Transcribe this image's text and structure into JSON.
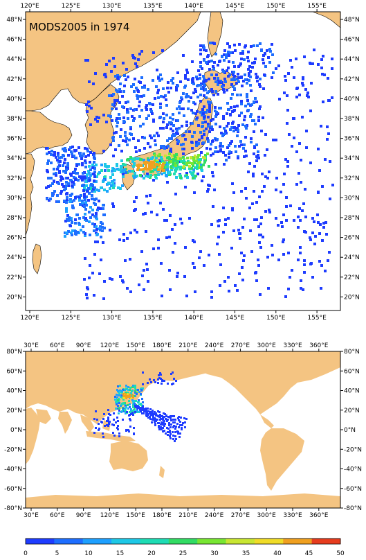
{
  "title": "MODS2005 in 1974",
  "top_map": {
    "lon_labels": [
      "120°E",
      "125°E",
      "130°E",
      "135°E",
      "140°E",
      "145°E",
      "150°E",
      "155°E"
    ],
    "lat_labels": [
      "48°N",
      "46°N",
      "44°N",
      "42°N",
      "40°N",
      "38°N",
      "36°N",
      "34°N",
      "32°N",
      "30°N",
      "28°N",
      "26°N",
      "24°N",
      "22°N",
      "20°N"
    ],
    "lon_range": [
      119,
      157.5
    ],
    "lat_range": [
      18.6,
      49.6
    ]
  },
  "bottom_map": {
    "lon_labels": [
      "30°E",
      "60°E",
      "90°E",
      "120°E",
      "150°E",
      "180°E",
      "210°E",
      "240°E",
      "270°E",
      "300°E",
      "330°E",
      "360°E"
    ],
    "lat_labels": [
      "80°N",
      "60°N",
      "40°N",
      "20°N",
      "0°N",
      "-20°N",
      "-40°N",
      "-60°N",
      "-80°N"
    ],
    "lon_range": [
      20,
      381
    ],
    "lat_range": [
      -80,
      80
    ]
  },
  "colorbar": {
    "labels": [
      "0",
      "5",
      "10",
      "15",
      "20",
      "25",
      "30",
      "35",
      "40",
      "45",
      "50"
    ],
    "colors": [
      "#1e3cff",
      "#1e6eff",
      "#1ea0ff",
      "#1ec8e6",
      "#1edcb4",
      "#32dc64",
      "#78e632",
      "#c8e632",
      "#f0dc28",
      "#f0a020",
      "#e63c1e"
    ]
  },
  "colors": {
    "land": "#f4c482",
    "ocean": "#ffffff",
    "frame": "#000000"
  }
}
